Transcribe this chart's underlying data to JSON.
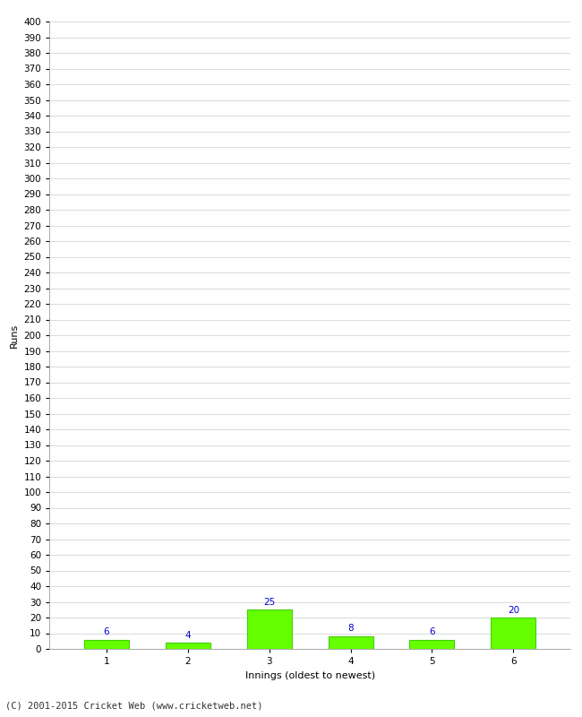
{
  "categories": [
    1,
    2,
    3,
    4,
    5,
    6
  ],
  "values": [
    6,
    4,
    25,
    8,
    6,
    20
  ],
  "bar_color": "#66ff00",
  "bar_edge_color": "#44cc00",
  "label_color": "#0000cc",
  "xlabel": "Innings (oldest to newest)",
  "ylabel": "Runs",
  "ylim": [
    0,
    400
  ],
  "background_color": "#ffffff",
  "grid_color": "#cccccc",
  "footer": "(C) 2001-2015 Cricket Web (www.cricketweb.net)",
  "label_fontsize": 7.5,
  "axis_fontsize": 8,
  "tick_fontsize": 7.5,
  "footer_fontsize": 7.5
}
